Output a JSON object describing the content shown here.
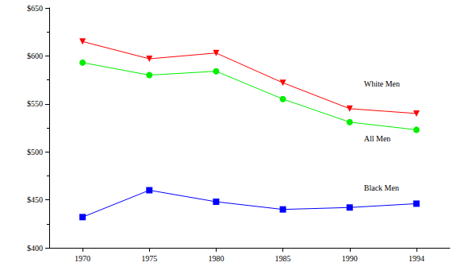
{
  "chart_data": {
    "type": "line",
    "categories": [
      "1970",
      "1975",
      "1980",
      "1985",
      "1990",
      "1994"
    ],
    "series": [
      {
        "name": "White Men",
        "color": "#ff0000",
        "marker": "triangle_down",
        "values": [
          615,
          597,
          603,
          572,
          545,
          540
        ]
      },
      {
        "name": "All Men",
        "color": "#00ee00",
        "marker": "circle",
        "values": [
          593,
          580,
          584,
          555,
          531,
          523
        ]
      },
      {
        "name": "Black Men",
        "color": "#0000ff",
        "marker": "square",
        "values": [
          432,
          460,
          448,
          440,
          442,
          446
        ]
      }
    ],
    "ylim": [
      400,
      650
    ],
    "yticks": [
      {
        "value": 400,
        "label": "$400"
      },
      {
        "value": 450,
        "label": "$450"
      },
      {
        "value": 500,
        "label": "$500"
      },
      {
        "value": 550,
        "label": "$550"
      },
      {
        "value": 600,
        "label": "$600"
      },
      {
        "value": 650,
        "label": "$650"
      }
    ],
    "grid": false
  }
}
